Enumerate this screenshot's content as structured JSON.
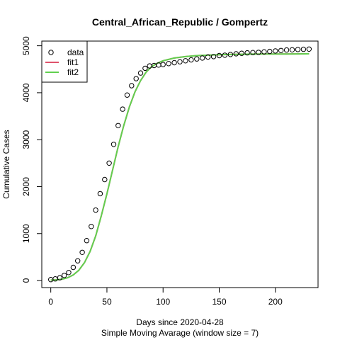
{
  "chart_data": {
    "type": "line",
    "title": "Central_African_Republic / Gompertz",
    "xlabel": "Days since 2020-04-28",
    "subtitle": "Simple Moving Avarage (window size = 7)",
    "ylabel": "Cumulative Cases",
    "xlim": [
      -8,
      238
    ],
    "ylim": [
      -150,
      5100
    ],
    "xticks": [
      0,
      50,
      100,
      150,
      200
    ],
    "yticks": [
      0,
      1000,
      2000,
      3000,
      4000,
      5000
    ],
    "grid": false,
    "legend_position": "top-left",
    "legend": [
      {
        "label": "data",
        "kind": "point",
        "color": "#000000"
      },
      {
        "label": "fit1",
        "kind": "line",
        "color": "#DF536B"
      },
      {
        "label": "fit2",
        "kind": "line",
        "color": "#61D04F"
      }
    ],
    "data_points": {
      "x": [
        0,
        4,
        8,
        12,
        16,
        20,
        24,
        28,
        32,
        36,
        40,
        44,
        48,
        52,
        56,
        60,
        64,
        68,
        72,
        76,
        80,
        84,
        88,
        92,
        96,
        100,
        105,
        110,
        115,
        120,
        125,
        130,
        135,
        140,
        145,
        150,
        155,
        160,
        165,
        170,
        175,
        180,
        185,
        190,
        195,
        200,
        205,
        210,
        215,
        220,
        225,
        230
      ],
      "y": [
        20,
        35,
        60,
        110,
        170,
        280,
        420,
        600,
        850,
        1150,
        1500,
        1850,
        2150,
        2500,
        2900,
        3300,
        3650,
        3950,
        4150,
        4300,
        4420,
        4520,
        4570,
        4580,
        4590,
        4600,
        4620,
        4640,
        4660,
        4680,
        4700,
        4720,
        4740,
        4760,
        4770,
        4790,
        4800,
        4815,
        4830,
        4840,
        4850,
        4855,
        4860,
        4870,
        4880,
        4890,
        4900,
        4910,
        4915,
        4920,
        4925,
        4930
      ]
    },
    "series": [
      {
        "name": "fit1",
        "color": "#DF536B",
        "x": [
          0,
          5,
          10,
          15,
          20,
          25,
          30,
          35,
          40,
          45,
          50,
          55,
          60,
          65,
          70,
          75,
          80,
          85,
          90,
          95,
          100,
          110,
          120,
          130,
          140,
          150,
          160,
          170,
          180,
          190,
          200,
          210,
          220,
          230
        ],
        "y": [
          10,
          15,
          30,
          60,
          120,
          220,
          380,
          620,
          950,
          1380,
          1850,
          2350,
          2850,
          3300,
          3700,
          4020,
          4260,
          4440,
          4560,
          4630,
          4680,
          4740,
          4770,
          4790,
          4800,
          4810,
          4815,
          4820,
          4822,
          4824,
          4825,
          4826,
          4827,
          4828
        ]
      },
      {
        "name": "fit2",
        "color": "#61D04F",
        "x": [
          0,
          5,
          10,
          15,
          20,
          25,
          30,
          35,
          40,
          45,
          50,
          55,
          60,
          65,
          70,
          75,
          80,
          85,
          90,
          95,
          100,
          110,
          120,
          130,
          140,
          150,
          160,
          170,
          180,
          190,
          200,
          210,
          220,
          230
        ],
        "y": [
          10,
          15,
          30,
          60,
          120,
          220,
          380,
          620,
          950,
          1380,
          1850,
          2350,
          2850,
          3300,
          3700,
          4020,
          4260,
          4440,
          4560,
          4630,
          4680,
          4740,
          4770,
          4790,
          4800,
          4810,
          4815,
          4820,
          4822,
          4824,
          4825,
          4826,
          4827,
          4828
        ]
      }
    ]
  }
}
